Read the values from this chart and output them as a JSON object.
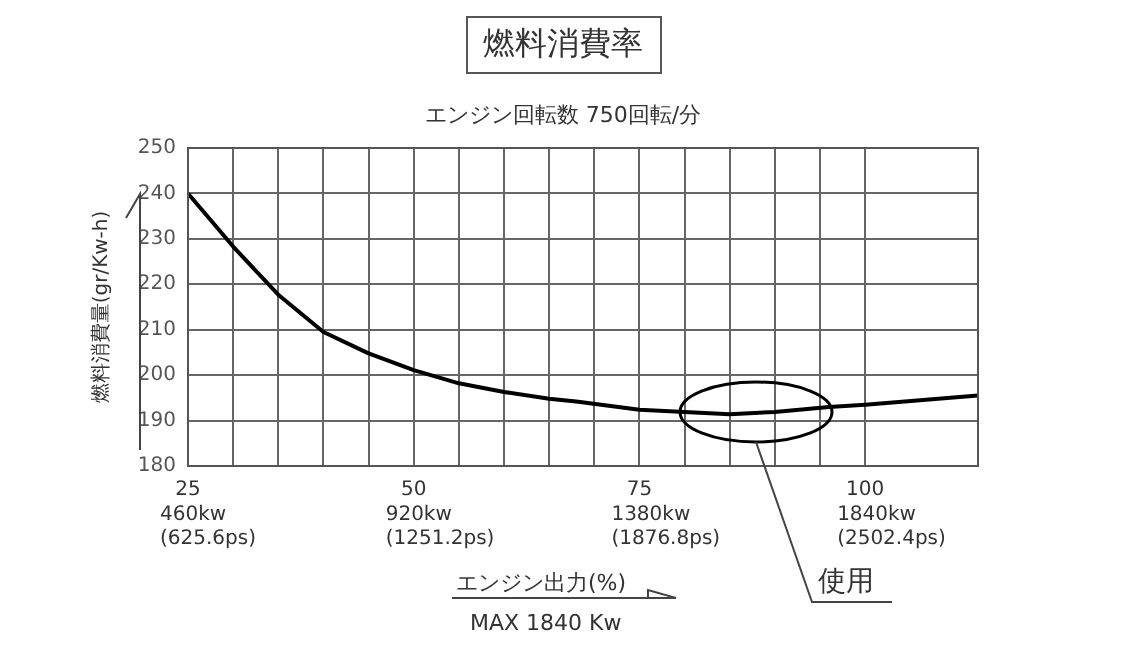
{
  "chart_data": {
    "type": "line",
    "title": "燃料消費率",
    "subtitle": "エンジン回転数 750回転/分",
    "xlabel": "エンジン出力(%)",
    "ylabel": "燃料消費量(gr/Kw-h)",
    "x": [
      25,
      30,
      35,
      40,
      45,
      50,
      55,
      60,
      65,
      68,
      75,
      80,
      85,
      90,
      96,
      100,
      112.5
    ],
    "series": [
      {
        "color": "#000000",
        "values": [
          240,
          228.3,
          217.7,
          209.5,
          204.8,
          201.1,
          198.2,
          196.3,
          194.8,
          194.2,
          192.4,
          191.9,
          191.4,
          191.9,
          193,
          193.5,
          195.5
        ]
      }
    ],
    "xlim": [
      25,
      112.5
    ],
    "ylim": [
      180,
      250
    ],
    "xticks": [
      25,
      {
        "value": 30,
        "label": null
      },
      {
        "value": 35,
        "label": null
      },
      {
        "value": 40,
        "label": null
      },
      {
        "value": 45,
        "label": null
      },
      50,
      {
        "value": 55,
        "label": null
      },
      {
        "value": 60,
        "label": null
      },
      {
        "value": 65,
        "label": null
      },
      {
        "value": 70,
        "label": null
      },
      75,
      {
        "value": 80,
        "label": null
      },
      {
        "value": 85,
        "label": null
      },
      {
        "value": 90,
        "label": null
      },
      {
        "value": 95,
        "label": null
      },
      100
    ],
    "yticks": [
      180,
      190,
      200,
      210,
      220,
      230,
      240,
      250
    ],
    "annotations": [
      "使用",
      "MAX 1840 Kw",
      "460kw\n(625.6ps)",
      "920kw\n(1251.2ps)",
      "1380kw\n(1876.8ps)",
      "1840kw\n(2502.4ps)"
    ],
    "grid": true,
    "legend": false,
    "marker": "none",
    "line_style": "solid"
  }
}
